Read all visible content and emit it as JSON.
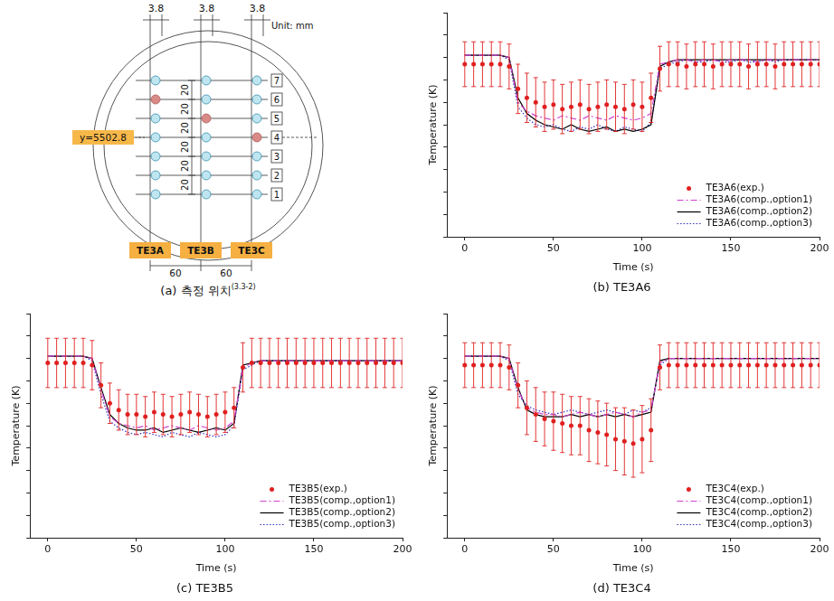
{
  "diagram": {
    "dimensions_top": [
      "3.8",
      "3.8",
      "3.8"
    ],
    "unit": "Unit: mm",
    "rows": [
      "1",
      "2",
      "3",
      "4",
      "5",
      "6",
      "7"
    ],
    "row_spacing": [
      "20",
      "20",
      "20",
      "20",
      "20",
      "20"
    ],
    "reference": "y=5502.8",
    "reference_row": "4",
    "columns": [
      "TE3A",
      "TE3B",
      "TE3C"
    ],
    "column_spacing": [
      "60",
      "60"
    ],
    "highlighted": [
      {
        "column": "TE3A",
        "row": "6"
      },
      {
        "column": "TE3B",
        "row": "5"
      },
      {
        "column": "TE3C",
        "row": "4"
      }
    ],
    "caption": "(a) 측정 위치",
    "caption_ref": "(3.3-2)"
  },
  "chart_data": [
    {
      "type": "line",
      "title": "(b) TE3A6",
      "x_label": "Time (s)",
      "y_label": "Temperature (K)",
      "x": [
        0,
        5,
        10,
        15,
        20,
        25,
        30,
        35,
        40,
        45,
        50,
        55,
        60,
        65,
        70,
        75,
        80,
        85,
        90,
        95,
        100,
        105,
        110,
        115,
        120,
        125,
        130,
        135,
        140,
        145,
        150,
        155,
        160,
        165,
        170,
        175,
        180,
        185,
        190,
        195,
        200
      ],
      "xlim": [
        -10,
        200
      ],
      "xticks": [
        0,
        50,
        100,
        150,
        200
      ],
      "ylim": [
        0,
        100
      ],
      "yticks": [
        0,
        10,
        20,
        30,
        40,
        50,
        60,
        70,
        80,
        90,
        100
      ],
      "tick_labels": "x",
      "grid": false,
      "legend": "lower right",
      "series": [
        {
          "name": "TE3A6(exp.)",
          "type": "scatter",
          "marker": "circle",
          "color": "#e02020",
          "values": [
            77,
            77,
            77,
            77,
            77,
            76,
            66,
            62,
            60,
            58,
            59,
            57,
            58,
            59,
            57,
            58,
            59,
            58,
            57,
            59,
            58,
            62,
            75,
            77,
            77,
            76,
            77,
            77,
            76,
            77,
            77,
            77,
            76,
            77,
            77,
            76,
            77,
            77,
            77,
            77,
            77
          ],
          "errors": [
            10,
            10,
            10,
            10,
            10,
            10,
            11,
            11,
            11,
            11,
            11,
            11,
            11,
            11,
            11,
            11,
            11,
            11,
            11,
            11,
            11,
            11,
            10,
            10,
            10,
            10,
            10,
            10,
            10,
            10,
            10,
            10,
            10,
            10,
            10,
            10,
            10,
            10,
            10,
            10,
            10
          ]
        },
        {
          "name": "TE3A6(comp.,option1)",
          "line_style": "dashdot",
          "color": "#d040d0",
          "values": [
            81,
            81,
            81,
            81,
            81,
            80,
            60,
            56,
            54,
            53,
            52,
            54,
            53,
            52,
            54,
            53,
            52,
            54,
            53,
            52,
            53,
            55,
            77,
            78,
            79,
            79,
            78,
            79,
            79,
            78,
            79,
            79,
            79,
            78,
            79,
            79,
            79,
            79,
            79,
            79,
            79
          ]
        },
        {
          "name": "TE3A6(comp.,option2)",
          "line_style": "solid",
          "color": "#000000",
          "values": [
            81,
            81,
            81,
            81,
            81,
            80,
            62,
            55,
            52,
            50,
            49,
            48,
            50,
            48,
            47,
            48,
            49,
            47,
            48,
            47,
            48,
            50,
            76,
            78,
            79,
            79,
            79,
            79,
            79,
            79,
            79,
            79,
            79,
            79,
            79,
            79,
            79,
            79,
            79,
            79,
            79
          ]
        },
        {
          "name": "TE3A6(comp.,option3)",
          "line_style": "dotted",
          "color": "#3030c0",
          "values": [
            81,
            81,
            81,
            81,
            81,
            79,
            58,
            53,
            50,
            49,
            50,
            48,
            47,
            49,
            48,
            50,
            48,
            47,
            49,
            48,
            47,
            51,
            75,
            77,
            78,
            79,
            78,
            78,
            79,
            78,
            78,
            79,
            78,
            78,
            79,
            78,
            79,
            79,
            79,
            79,
            79
          ]
        }
      ]
    },
    {
      "type": "line",
      "title": "(c) TE3B5",
      "x_label": "Time (s)",
      "y_label": "Temperature (K)",
      "x": [
        0,
        5,
        10,
        15,
        20,
        25,
        30,
        35,
        40,
        45,
        50,
        55,
        60,
        65,
        70,
        75,
        80,
        85,
        90,
        95,
        100,
        105,
        110,
        115,
        120,
        125,
        130,
        135,
        140,
        145,
        150,
        155,
        160,
        165,
        170,
        175,
        180,
        185,
        190,
        195,
        200
      ],
      "xlim": [
        -10,
        200
      ],
      "xticks": [
        0,
        50,
        100,
        150,
        200
      ],
      "ylim": [
        0,
        100
      ],
      "yticks": [
        0,
        10,
        20,
        30,
        40,
        50,
        60,
        70,
        80,
        90,
        100
      ],
      "tick_labels": "x",
      "grid": false,
      "legend": "lower right",
      "series": [
        {
          "name": "TE3B5(exp.)",
          "type": "scatter",
          "marker": "circle",
          "color": "#e02020",
          "values": [
            78,
            78,
            78,
            78,
            78,
            77,
            68,
            60,
            57,
            55,
            55,
            54,
            56,
            55,
            54,
            55,
            56,
            55,
            54,
            55,
            56,
            58,
            76,
            78,
            78,
            78,
            78,
            78,
            78,
            78,
            78,
            78,
            78,
            78,
            78,
            78,
            78,
            78,
            78,
            78,
            78
          ],
          "errors": [
            11,
            11,
            11,
            11,
            11,
            11,
            10,
            9,
            9,
            9,
            9,
            9,
            9,
            9,
            9,
            9,
            9,
            9,
            9,
            9,
            9,
            9,
            11,
            11,
            11,
            11,
            11,
            11,
            11,
            11,
            11,
            11,
            11,
            11,
            11,
            11,
            11,
            11,
            11,
            11,
            11
          ]
        },
        {
          "name": "TE3B5(comp.,option1)",
          "line_style": "dashdot",
          "color": "#d040d0",
          "values": [
            81,
            81,
            81,
            81,
            81,
            80,
            66,
            54,
            51,
            50,
            49,
            50,
            48,
            49,
            50,
            49,
            48,
            50,
            49,
            48,
            49,
            52,
            76,
            78,
            79,
            79,
            79,
            79,
            79,
            79,
            79,
            79,
            79,
            79,
            79,
            79,
            79,
            79,
            79,
            79,
            79
          ]
        },
        {
          "name": "TE3B5(comp.,option2)",
          "line_style": "solid",
          "color": "#000000",
          "values": [
            81,
            81,
            81,
            81,
            81,
            80,
            67,
            55,
            51,
            49,
            48,
            48,
            49,
            47,
            48,
            49,
            48,
            47,
            48,
            49,
            48,
            51,
            77,
            78,
            79,
            79,
            79,
            79,
            79,
            79,
            79,
            79,
            79,
            79,
            79,
            79,
            79,
            79,
            79,
            79,
            79
          ]
        },
        {
          "name": "TE3B5(comp.,option3)",
          "line_style": "dotted",
          "color": "#3030c0",
          "values": [
            81,
            81,
            81,
            81,
            81,
            79,
            64,
            52,
            49,
            47,
            46,
            47,
            46,
            45,
            47,
            46,
            45,
            47,
            46,
            45,
            46,
            50,
            75,
            77,
            79,
            79,
            79,
            79,
            79,
            79,
            79,
            79,
            79,
            79,
            79,
            79,
            79,
            79,
            79,
            79,
            79
          ]
        }
      ]
    },
    {
      "type": "line",
      "title": "(d) TE3C4",
      "x_label": "Time (s)",
      "y_label": "Temperature (K)",
      "x": [
        0,
        5,
        10,
        15,
        20,
        25,
        30,
        35,
        40,
        45,
        50,
        55,
        60,
        65,
        70,
        75,
        80,
        85,
        90,
        95,
        100,
        105,
        110,
        115,
        120,
        125,
        130,
        135,
        140,
        145,
        150,
        155,
        160,
        165,
        170,
        175,
        180,
        185,
        190,
        195,
        200
      ],
      "xlim": [
        -10,
        200
      ],
      "xticks": [
        0,
        50,
        100,
        150,
        200
      ],
      "ylim": [
        0,
        100
      ],
      "yticks": [
        0,
        10,
        20,
        30,
        40,
        50,
        60,
        70,
        80,
        90,
        100
      ],
      "tick_labels": "x",
      "grid": false,
      "legend": "lower right",
      "series": [
        {
          "name": "TE3C4(exp.)",
          "type": "scatter",
          "marker": "circle",
          "color": "#e02020",
          "values": [
            77,
            77,
            77,
            77,
            77,
            76,
            68,
            58,
            55,
            53,
            52,
            51,
            50,
            50,
            48,
            47,
            46,
            44,
            43,
            42,
            44,
            48,
            76,
            77,
            77,
            77,
            77,
            77,
            77,
            77,
            77,
            77,
            77,
            77,
            77,
            77,
            77,
            77,
            77,
            77,
            77
          ],
          "errors": [
            10,
            10,
            10,
            10,
            10,
            10,
            10,
            12,
            12,
            12,
            13,
            13,
            13,
            13,
            14,
            14,
            14,
            14,
            15,
            15,
            15,
            14,
            10,
            10,
            10,
            10,
            10,
            10,
            10,
            10,
            10,
            10,
            10,
            10,
            10,
            10,
            10,
            10,
            10,
            10,
            10
          ]
        },
        {
          "name": "TE3C4(comp.,option1)",
          "line_style": "dashdot",
          "color": "#d040d0",
          "values": [
            81,
            81,
            81,
            81,
            81,
            80,
            66,
            58,
            56,
            55,
            55,
            54,
            55,
            56,
            55,
            54,
            55,
            56,
            55,
            54,
            56,
            57,
            78,
            80,
            80,
            80,
            80,
            80,
            80,
            80,
            80,
            80,
            80,
            80,
            80,
            80,
            80,
            80,
            80,
            80,
            80
          ]
        },
        {
          "name": "TE3C4(comp.,option2)",
          "line_style": "solid",
          "color": "#000000",
          "values": [
            81,
            81,
            81,
            81,
            81,
            80,
            67,
            57,
            55,
            54,
            54,
            54,
            55,
            54,
            55,
            54,
            55,
            54,
            55,
            54,
            55,
            56,
            79,
            80,
            80,
            80,
            80,
            80,
            80,
            80,
            80,
            80,
            80,
            80,
            80,
            80,
            80,
            80,
            80,
            80,
            80
          ]
        },
        {
          "name": "TE3C4(comp.,option3)",
          "line_style": "dotted",
          "color": "#3030c0",
          "values": [
            81,
            81,
            81,
            81,
            81,
            79,
            64,
            59,
            57,
            56,
            55,
            56,
            57,
            56,
            55,
            56,
            57,
            56,
            55,
            57,
            56,
            58,
            77,
            80,
            80,
            80,
            80,
            80,
            80,
            80,
            80,
            80,
            80,
            80,
            80,
            80,
            80,
            80,
            80,
            80,
            80
          ]
        }
      ]
    }
  ]
}
